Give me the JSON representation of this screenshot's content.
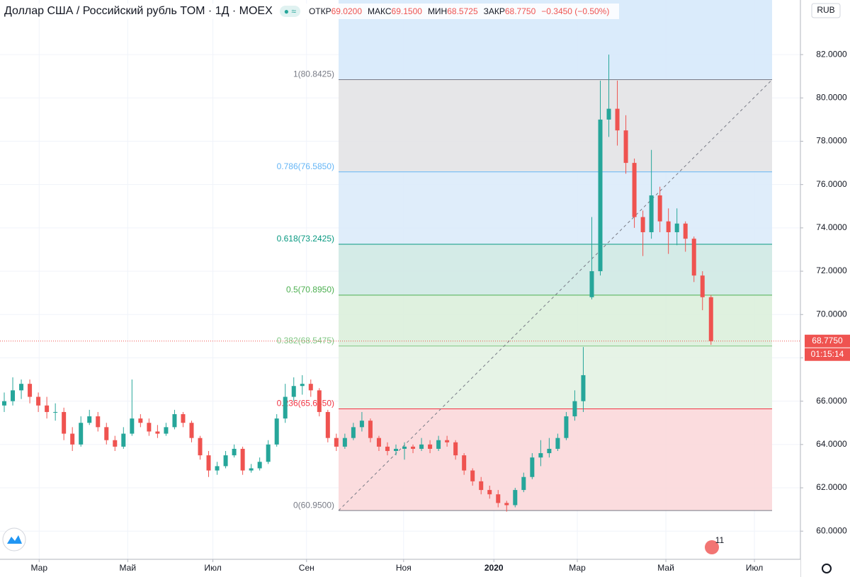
{
  "header": {
    "symbol": "Доллар США / Российский рубль TOM · 1Д · MOEX",
    "open_key": "ОТКР",
    "open": "69.0200",
    "high_key": "МАКС",
    "high": "69.1500",
    "low_key": "МИН",
    "low": "68.5725",
    "close_key": "ЗАКР",
    "close": "68.7750",
    "change": "−0.3450 (−0.50%)"
  },
  "chart_data": {
    "type": "candlestick",
    "currency": "RUB",
    "price_label": "68.7750",
    "countdown": "01:15:14",
    "events_badge": "11",
    "up_color": "#26a69a",
    "down_color": "#ef5350",
    "ylim": [
      58.7,
      84.52
    ],
    "yticks": [
      {
        "value": 60,
        "label": "60.0000"
      },
      {
        "value": 62,
        "label": "62.0000"
      },
      {
        "value": 64,
        "label": "64.0000"
      },
      {
        "value": 66,
        "label": "66.0000"
      },
      {
        "value": 68,
        "label": "68.0000"
      },
      {
        "value": 70,
        "label": "70.0000"
      },
      {
        "value": 72,
        "label": "72.0000"
      },
      {
        "value": 74,
        "label": "74.0000"
      },
      {
        "value": 76,
        "label": "76.0000"
      },
      {
        "value": 78,
        "label": "78.0000"
      },
      {
        "value": 80,
        "label": "80.0000"
      },
      {
        "value": 82,
        "label": "82.0000"
      }
    ],
    "xlim": [
      0,
      94
    ],
    "xticks": [
      {
        "value": 4.6,
        "label": "Мар"
      },
      {
        "value": 15,
        "label": "Май"
      },
      {
        "value": 25,
        "label": "Июл"
      },
      {
        "value": 36,
        "label": "Сен"
      },
      {
        "value": 47.4,
        "label": "Ноя"
      },
      {
        "value": 58,
        "label": "2020"
      },
      {
        "value": 67.8,
        "label": "Мар"
      },
      {
        "value": 78.2,
        "label": "Май"
      },
      {
        "value": 88.6,
        "label": "Июл"
      }
    ],
    "candles": [
      [
        65.8,
        66.4,
        65.5,
        66.0
      ],
      [
        66.0,
        67.1,
        65.8,
        66.5
      ],
      [
        66.5,
        67.0,
        66.1,
        66.8
      ],
      [
        66.8,
        67.0,
        65.9,
        66.2
      ],
      [
        66.2,
        66.4,
        65.5,
        65.8
      ],
      [
        65.8,
        66.2,
        65.2,
        65.5
      ],
      [
        65.5,
        65.9,
        65.1,
        65.5
      ],
      [
        65.5,
        65.7,
        64.2,
        64.5
      ],
      [
        64.5,
        64.8,
        63.7,
        64.0
      ],
      [
        64.0,
        65.3,
        63.9,
        65.0
      ],
      [
        65.0,
        65.6,
        64.9,
        65.3
      ],
      [
        65.3,
        65.5,
        64.6,
        64.8
      ],
      [
        64.8,
        65.0,
        64.0,
        64.2
      ],
      [
        64.2,
        64.4,
        63.7,
        63.9
      ],
      [
        63.9,
        64.8,
        63.8,
        64.5
      ],
      [
        64.5,
        67.0,
        64.4,
        65.2
      ],
      [
        65.2,
        65.4,
        64.8,
        65.0
      ],
      [
        65.0,
        65.2,
        64.4,
        64.6
      ],
      [
        64.6,
        64.9,
        64.3,
        64.5
      ],
      [
        64.5,
        65.0,
        64.4,
        64.8
      ],
      [
        64.8,
        65.6,
        64.7,
        65.4
      ],
      [
        65.4,
        65.5,
        64.8,
        65.0
      ],
      [
        65.0,
        65.1,
        64.1,
        64.3
      ],
      [
        64.3,
        64.4,
        63.3,
        63.5
      ],
      [
        63.5,
        63.7,
        62.5,
        62.8
      ],
      [
        62.8,
        63.2,
        62.6,
        63.0
      ],
      [
        63.0,
        63.7,
        62.9,
        63.5
      ],
      [
        63.5,
        64.0,
        63.4,
        63.8
      ],
      [
        63.8,
        63.9,
        62.6,
        62.8
      ],
      [
        62.8,
        63.1,
        62.7,
        62.9
      ],
      [
        62.9,
        63.4,
        62.8,
        63.2
      ],
      [
        63.2,
        64.2,
        63.1,
        64.0
      ],
      [
        64.0,
        65.4,
        63.9,
        65.2
      ],
      [
        65.2,
        66.8,
        65.0,
        66.2
      ],
      [
        66.2,
        67.1,
        66.0,
        66.7
      ],
      [
        66.7,
        67.2,
        66.3,
        66.8
      ],
      [
        66.8,
        67.0,
        66.2,
        66.5
      ],
      [
        66.5,
        66.6,
        65.3,
        65.5
      ],
      [
        65.5,
        65.6,
        64.1,
        64.3
      ],
      [
        64.3,
        64.5,
        63.7,
        63.9
      ],
      [
        63.9,
        64.5,
        63.8,
        64.3
      ],
      [
        64.3,
        65.0,
        64.2,
        64.8
      ],
      [
        64.8,
        65.5,
        64.6,
        65.1
      ],
      [
        65.1,
        65.2,
        64.1,
        64.3
      ],
      [
        64.3,
        64.4,
        63.7,
        63.9
      ],
      [
        63.9,
        64.1,
        63.5,
        63.7
      ],
      [
        63.7,
        64.0,
        63.5,
        63.8
      ],
      [
        63.8,
        64.1,
        63.3,
        63.9
      ],
      [
        63.9,
        64.0,
        63.6,
        63.8
      ],
      [
        63.8,
        64.3,
        63.7,
        64.0
      ],
      [
        64.0,
        64.2,
        63.6,
        63.8
      ],
      [
        63.8,
        64.4,
        63.7,
        64.2
      ],
      [
        64.2,
        64.4,
        63.9,
        64.1
      ],
      [
        64.1,
        64.2,
        63.3,
        63.5
      ],
      [
        63.5,
        63.6,
        62.6,
        62.8
      ],
      [
        62.8,
        62.9,
        62.1,
        62.3
      ],
      [
        62.3,
        62.5,
        61.7,
        61.9
      ],
      [
        61.9,
        62.1,
        61.5,
        61.7
      ],
      [
        61.7,
        61.9,
        61.1,
        61.3
      ],
      [
        61.3,
        61.4,
        60.9,
        61.2
      ],
      [
        61.2,
        62.0,
        61.1,
        61.9
      ],
      [
        61.9,
        62.7,
        61.8,
        62.5
      ],
      [
        62.5,
        63.6,
        62.4,
        63.4
      ],
      [
        63.4,
        64.2,
        63.0,
        63.6
      ],
      [
        63.6,
        64.3,
        63.4,
        63.8
      ],
      [
        63.8,
        64.5,
        63.7,
        64.3
      ],
      [
        64.3,
        65.5,
        64.2,
        65.3
      ],
      [
        65.3,
        66.5,
        65.1,
        66.0
      ],
      [
        66.0,
        68.5,
        65.5,
        67.2
      ],
      [
        70.8,
        74.5,
        70.7,
        72.0
      ],
      [
        72.0,
        80.8,
        71.8,
        79.0
      ],
      [
        79.0,
        82.0,
        78.2,
        79.5
      ],
      [
        79.5,
        80.8,
        77.8,
        78.5
      ],
      [
        78.5,
        79.2,
        76.5,
        77.0
      ],
      [
        77.0,
        77.2,
        74.0,
        74.5
      ],
      [
        74.5,
        74.8,
        72.7,
        73.8
      ],
      [
        73.8,
        77.6,
        73.5,
        75.5
      ],
      [
        75.5,
        75.9,
        73.8,
        74.3
      ],
      [
        74.3,
        74.9,
        72.8,
        73.8
      ],
      [
        73.8,
        74.9,
        73.2,
        74.2
      ],
      [
        74.2,
        74.3,
        72.9,
        73.5
      ],
      [
        73.5,
        73.6,
        71.5,
        71.8
      ],
      [
        71.8,
        72.0,
        70.2,
        70.8
      ],
      [
        70.8,
        70.9,
        68.6,
        68.775
      ]
    ],
    "fib_top_zone": "#d6e9fb",
    "fib_levels": [
      {
        "label": "1(80.8425)",
        "value": 80.8425,
        "color": "#787b86",
        "zone": "#e3e3e5"
      },
      {
        "label": "0.786(76.5850)",
        "value": 76.585,
        "color": "#64b5f6",
        "zone": "#dcebfa"
      },
      {
        "label": "0.618(73.2425)",
        "value": 73.2425,
        "color": "#089981",
        "zone": "#cfe9e4"
      },
      {
        "label": "0.5(70.8950)",
        "value": 70.895,
        "color": "#4caf50",
        "zone": "#dcefdc"
      },
      {
        "label": "0.382(68.5475)",
        "value": 68.5475,
        "color": "#81c784",
        "zone": "#e3f2e3"
      },
      {
        "label": "0.236(65.6450)",
        "value": 65.645,
        "color": "#f23645",
        "zone": "#fbd8da"
      },
      {
        "label": "0(60.9500)",
        "value": 60.95,
        "color": "#787b86",
        "zone": null
      }
    ]
  }
}
